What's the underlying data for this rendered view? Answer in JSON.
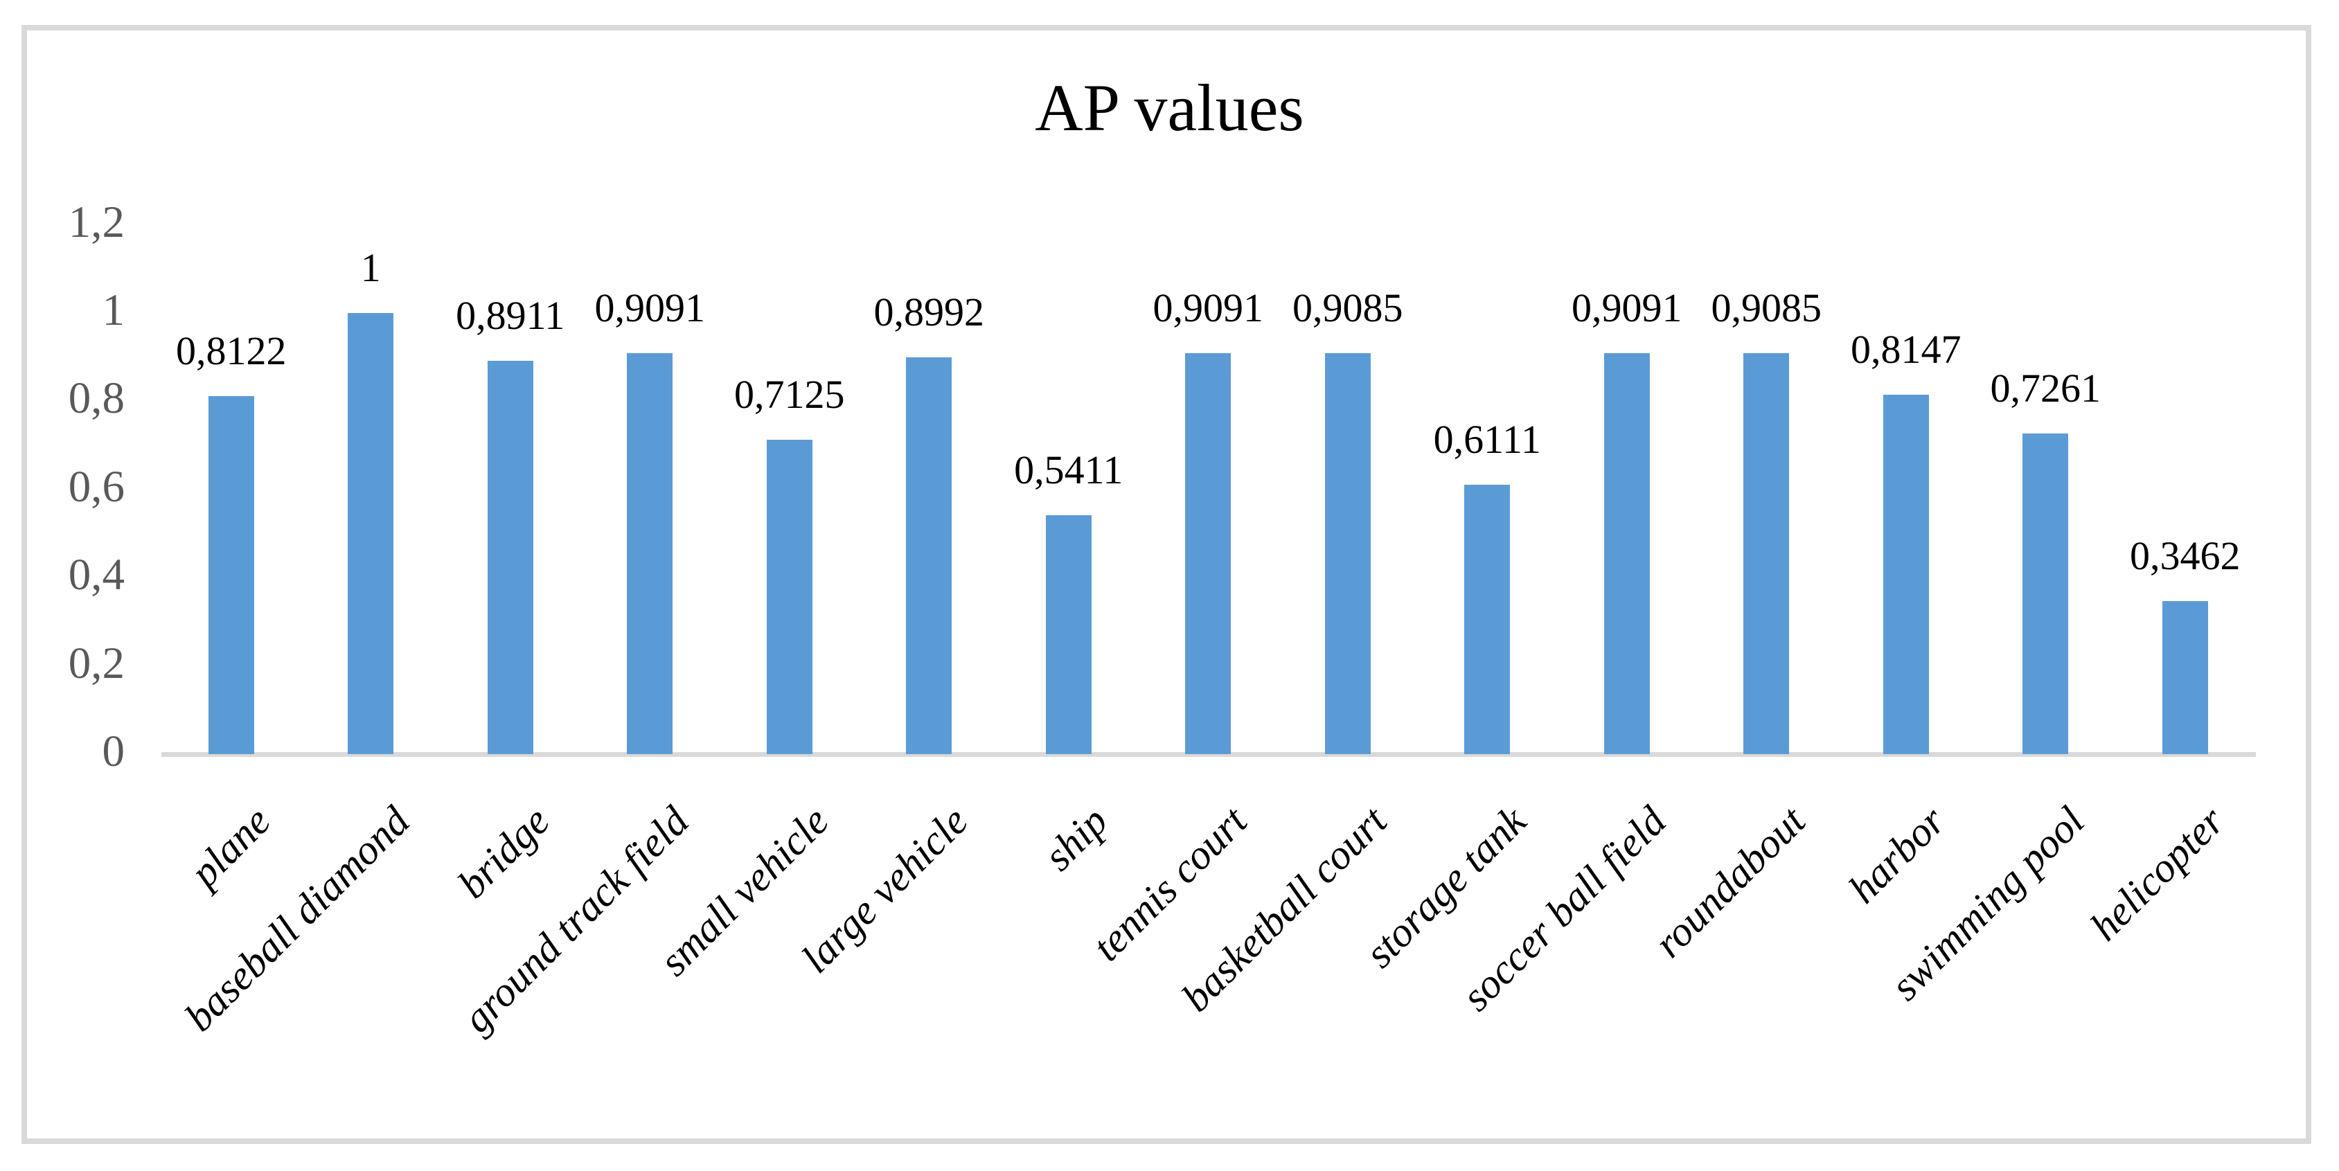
{
  "chart_data": {
    "type": "bar",
    "title": "AP values",
    "categories": [
      "plane",
      "baseball diamond",
      "bridge",
      "ground track field",
      "small vehicle",
      "large vehicle",
      "ship",
      "tennis court",
      "basketball court",
      "storage tank",
      "soccer ball field",
      "roundabout",
      "harbor",
      "swimming pool",
      "helicopter"
    ],
    "values": [
      0.8122,
      1,
      0.8911,
      0.9091,
      0.7125,
      0.8992,
      0.5411,
      0.9091,
      0.9085,
      0.6111,
      0.9091,
      0.9085,
      0.8147,
      0.7261,
      0.3462
    ],
    "value_labels": [
      "0,8122",
      "1",
      "0,8911",
      "0,9091",
      "0,7125",
      "0,8992",
      "0,5411",
      "0,9091",
      "0,9085",
      "0,6111",
      "0,9091",
      "0,9085",
      "0,8147",
      "0,7261",
      "0,3462"
    ],
    "y_ticks": [
      {
        "v": 0,
        "label": "0"
      },
      {
        "v": 0.2,
        "label": "0,2"
      },
      {
        "v": 0.4,
        "label": "0,4"
      },
      {
        "v": 0.6,
        "label": "0,6"
      },
      {
        "v": 0.8,
        "label": "0,8"
      },
      {
        "v": 1,
        "label": "1"
      },
      {
        "v": 1.2,
        "label": "1,2"
      }
    ],
    "ylim": [
      0,
      1.2
    ],
    "xlabel": "",
    "ylabel": "",
    "grid": false,
    "legend": "none",
    "decimal_separator": ",",
    "bar_color": "#5B9BD5",
    "axis_line_color": "#D9D9D9",
    "tick_label_color": "#595959",
    "data_label_color": "#000000",
    "frame_color": "#D9D9D9"
  }
}
